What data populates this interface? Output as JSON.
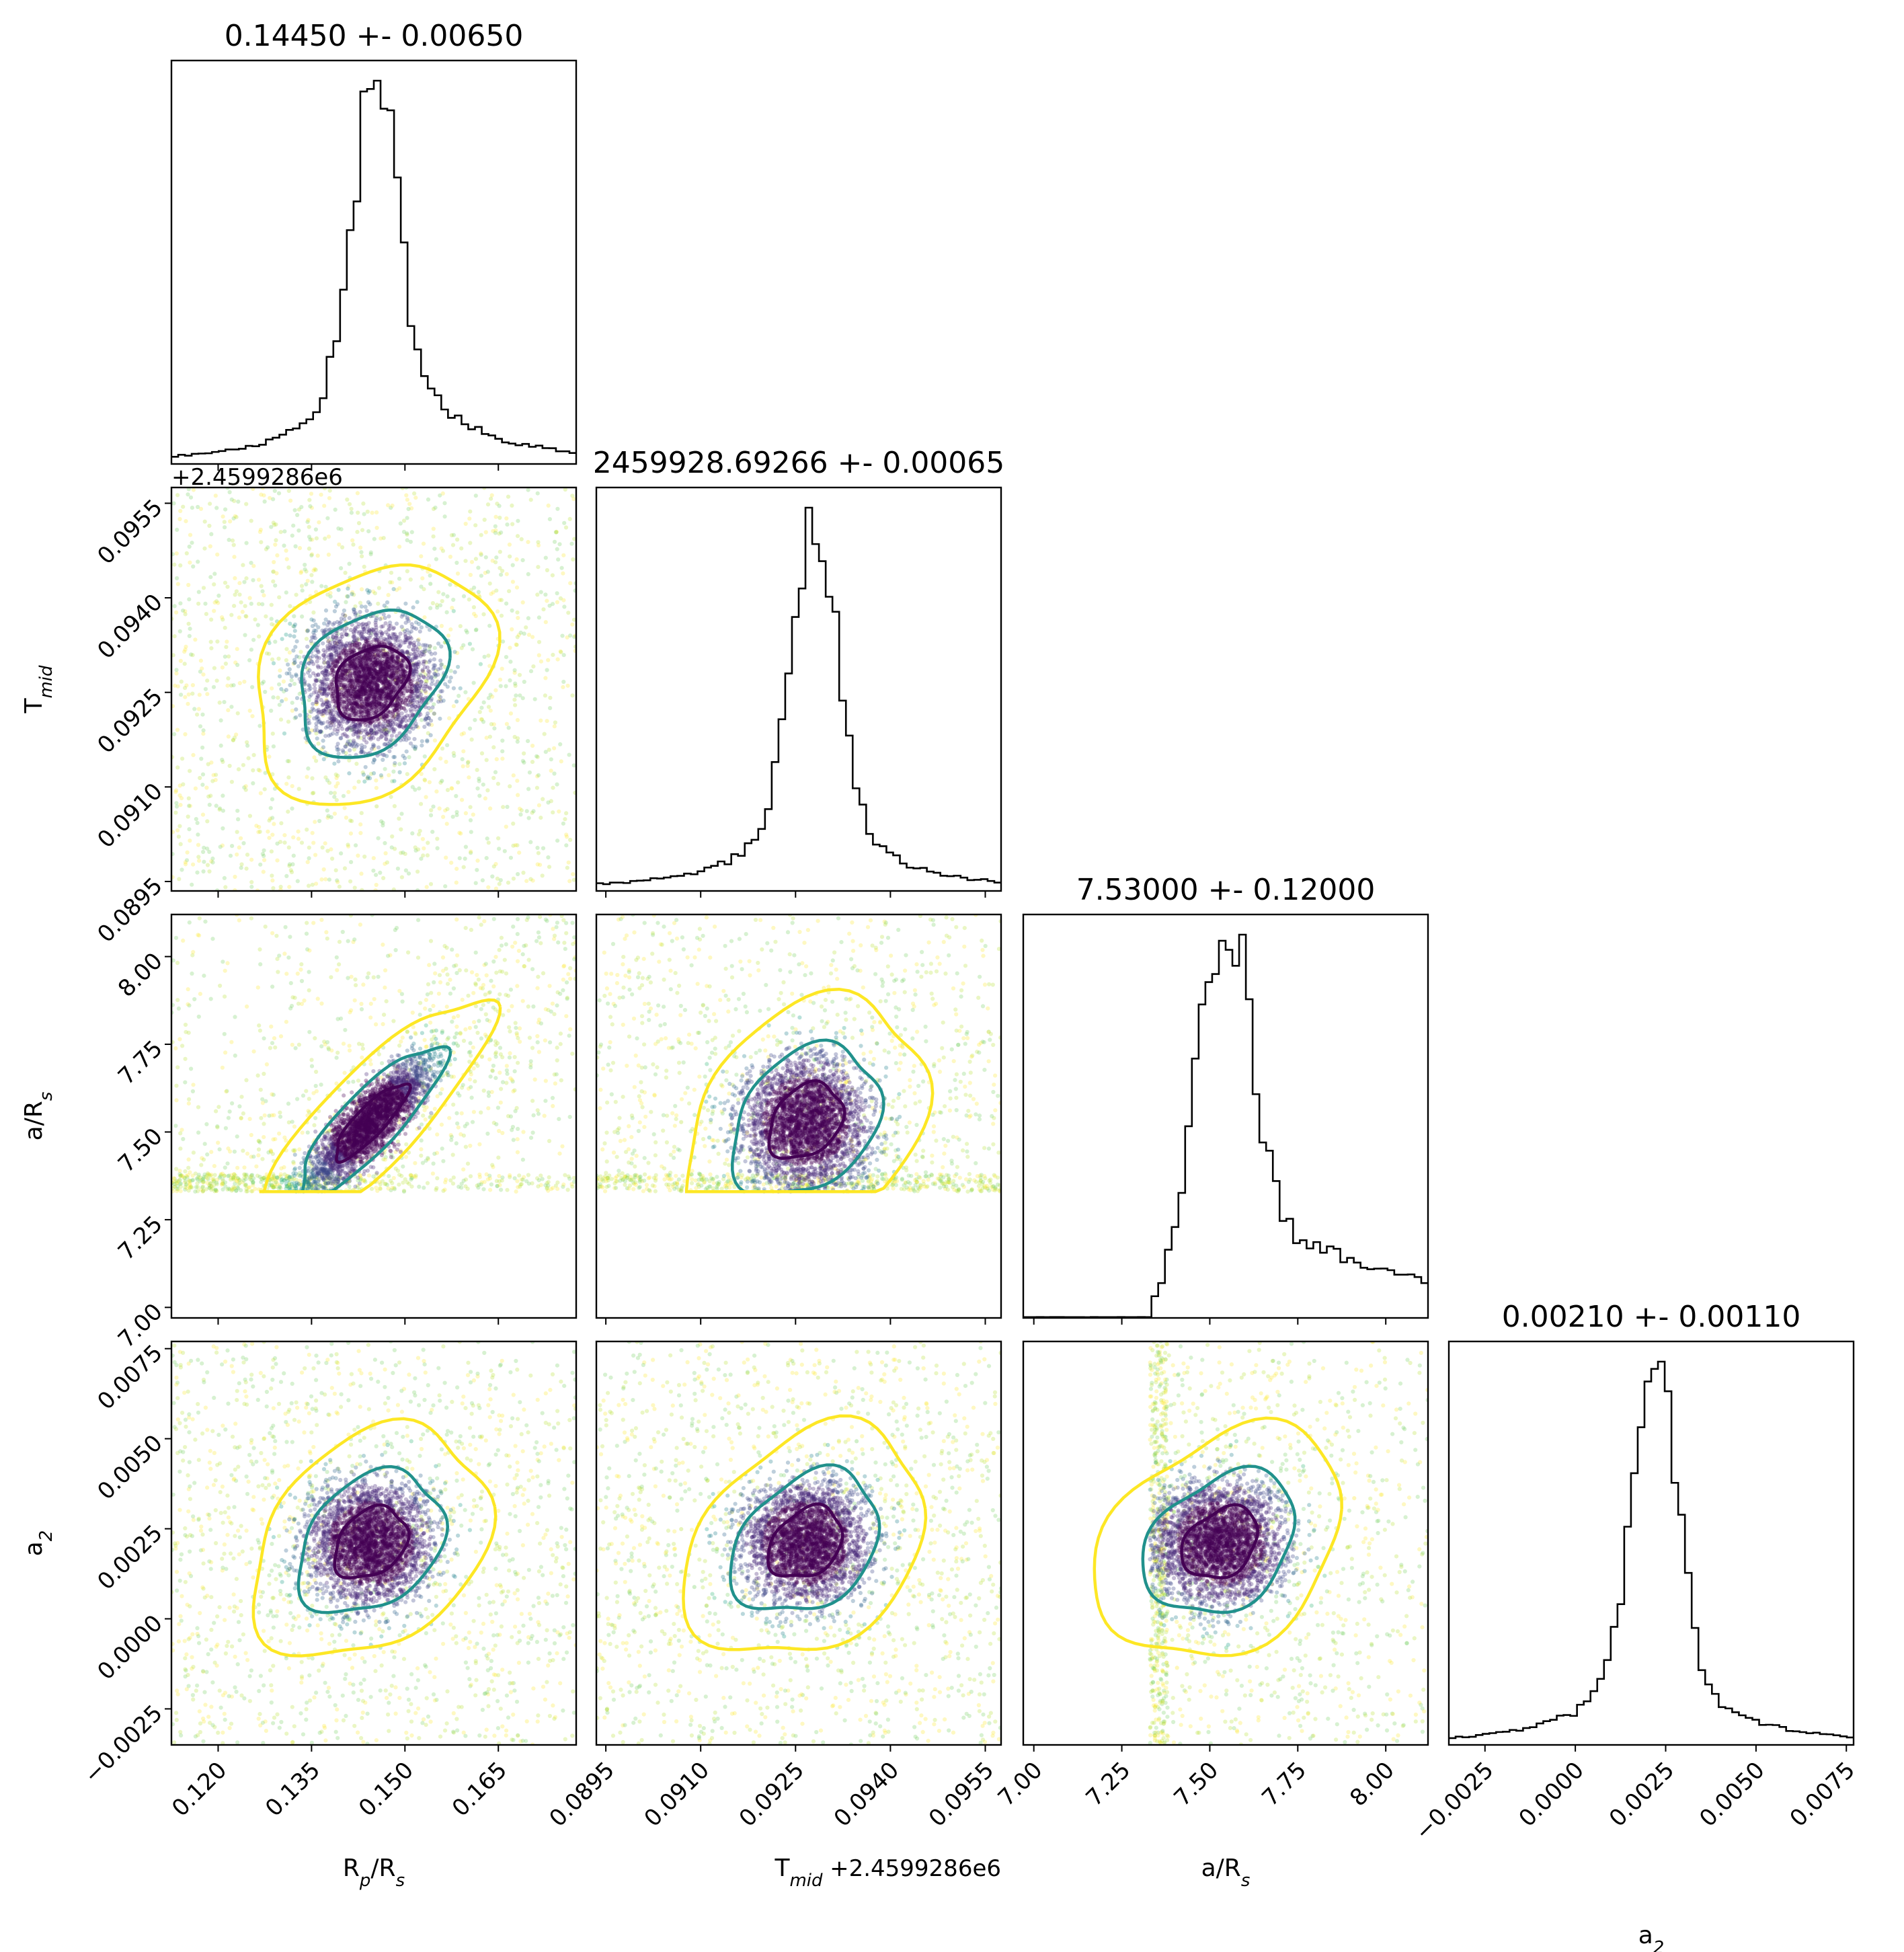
{
  "chart_data": {
    "type": "corner",
    "parameters": [
      {
        "key": "rp",
        "label": "R_p/R_s",
        "range": [
          0.1125,
          0.1775
        ],
        "ticks": [
          "0.120",
          "0.135",
          "0.150",
          "0.165"
        ],
        "tick_values": [
          0.12,
          0.135,
          0.15,
          0.165
        ]
      },
      {
        "key": "tmid",
        "label": "T_mid",
        "range": [
          0.08935,
          0.09575
        ],
        "ticks": [
          "0.0895",
          "0.0910",
          "0.0925",
          "0.0940",
          "0.0955"
        ],
        "tick_values": [
          0.0895,
          0.091,
          0.0925,
          0.094,
          0.0955
        ],
        "offset_text": "+2.4599286e6"
      },
      {
        "key": "ars",
        "label": "a/R_s",
        "range": [
          6.97,
          8.12
        ],
        "ticks": [
          "7.00",
          "7.25",
          "7.50",
          "7.75",
          "8.00"
        ],
        "tick_values": [
          7.0,
          7.25,
          7.5,
          7.75,
          8.0
        ]
      },
      {
        "key": "a2",
        "label": "a_2",
        "range": [
          -0.0035,
          0.0077
        ],
        "ticks": [
          "−0.0025",
          "0.0000",
          "0.0025",
          "0.0050",
          "0.0075"
        ],
        "tick_values": [
          -0.0025,
          0.0,
          0.0025,
          0.005,
          0.0075
        ]
      }
    ],
    "titles": [
      "0.14450 +- 0.00650",
      "2459928.69266 +- 0.00065",
      "7.53000 +- 0.12000",
      "0.00210 +- 0.00110"
    ],
    "marginals": [
      {
        "param": "rp",
        "mean": 0.1445,
        "std": 0.0065,
        "peak_x": 0.145,
        "shape": "peaked with heavy right tail"
      },
      {
        "param": "tmid",
        "mean": 0.09266,
        "std": 0.00065,
        "peak_x": 0.0928,
        "shape": "peaked with heavy tails"
      },
      {
        "param": "ars",
        "mean": 7.53,
        "std": 0.12,
        "peak_x": 7.55,
        "lower_cutoff": 7.33,
        "shape": "peaked, truncated below 7.33, heavy right tail"
      },
      {
        "param": "a2",
        "mean": 0.0021,
        "std": 0.0011,
        "peak_x": 0.0022,
        "shape": "peaked with heavy tails"
      }
    ],
    "contour_colors": [
      "#440154",
      "#21918c",
      "#fde725"
    ],
    "scatter_colormap": "viridis",
    "correlations": {
      "rp_ars": 0.85
    },
    "grid": false
  }
}
